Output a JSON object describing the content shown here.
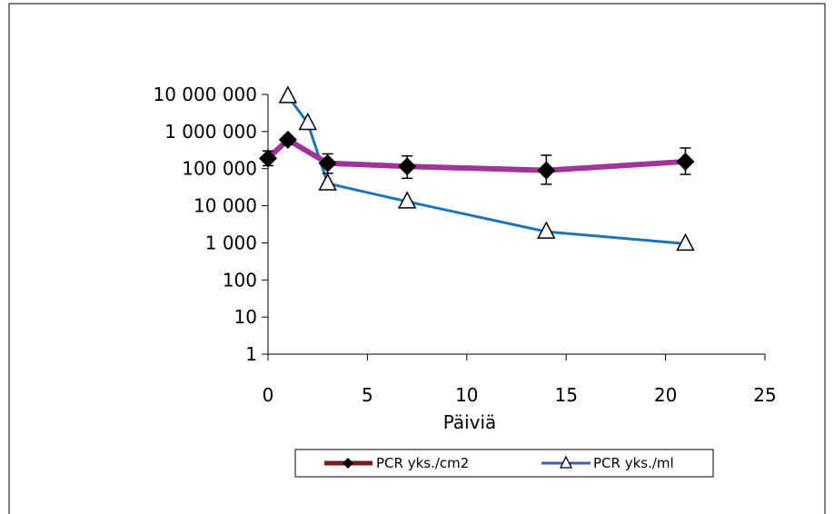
{
  "chart_data": {
    "type": "line",
    "title": "",
    "xlabel": "Päiviä",
    "ylabel": "",
    "xlim": [
      0,
      25
    ],
    "ylim": [
      1,
      10000000
    ],
    "yscale": "log",
    "x_ticks": [
      {
        "value": 0,
        "label": "0"
      },
      {
        "value": 5,
        "label": "5"
      },
      {
        "value": 10,
        "label": "10"
      },
      {
        "value": 15,
        "label": "15"
      },
      {
        "value": 20,
        "label": "20"
      },
      {
        "value": 25,
        "label": "25"
      }
    ],
    "y_ticks": [
      {
        "value": 1,
        "label": "1"
      },
      {
        "value": 10,
        "label": "10"
      },
      {
        "value": 100,
        "label": "100"
      },
      {
        "value": 1000,
        "label": "1 000"
      },
      {
        "value": 10000,
        "label": "10 000"
      },
      {
        "value": 100000,
        "label": "100 000"
      },
      {
        "value": 1000000,
        "label": "1 000 000"
      },
      {
        "value": 10000000,
        "label": "10 000 000"
      }
    ],
    "grid": false,
    "legend_position": "bottom",
    "series": [
      {
        "name": "PCR yks./cm2",
        "color": "#a0349a",
        "legend_color": "#7b1a1a",
        "marker": "diamond",
        "x": [
          0,
          1,
          3,
          7,
          14,
          21
        ],
        "y": [
          190000,
          600000,
          140000,
          115000,
          90000,
          155000
        ],
        "error_low": [
          120000,
          450000,
          75000,
          55000,
          38000,
          70000
        ],
        "error_high": [
          300000,
          750000,
          250000,
          220000,
          230000,
          360000
        ]
      },
      {
        "name": "PCR yks./ml",
        "color": "#1f73b7",
        "legend_color": "#3f5fa6",
        "marker": "triangle",
        "x": [
          1,
          2,
          3,
          7,
          14,
          21
        ],
        "y": [
          9000000,
          1700000,
          40000,
          13000,
          2000,
          950
        ]
      }
    ]
  }
}
